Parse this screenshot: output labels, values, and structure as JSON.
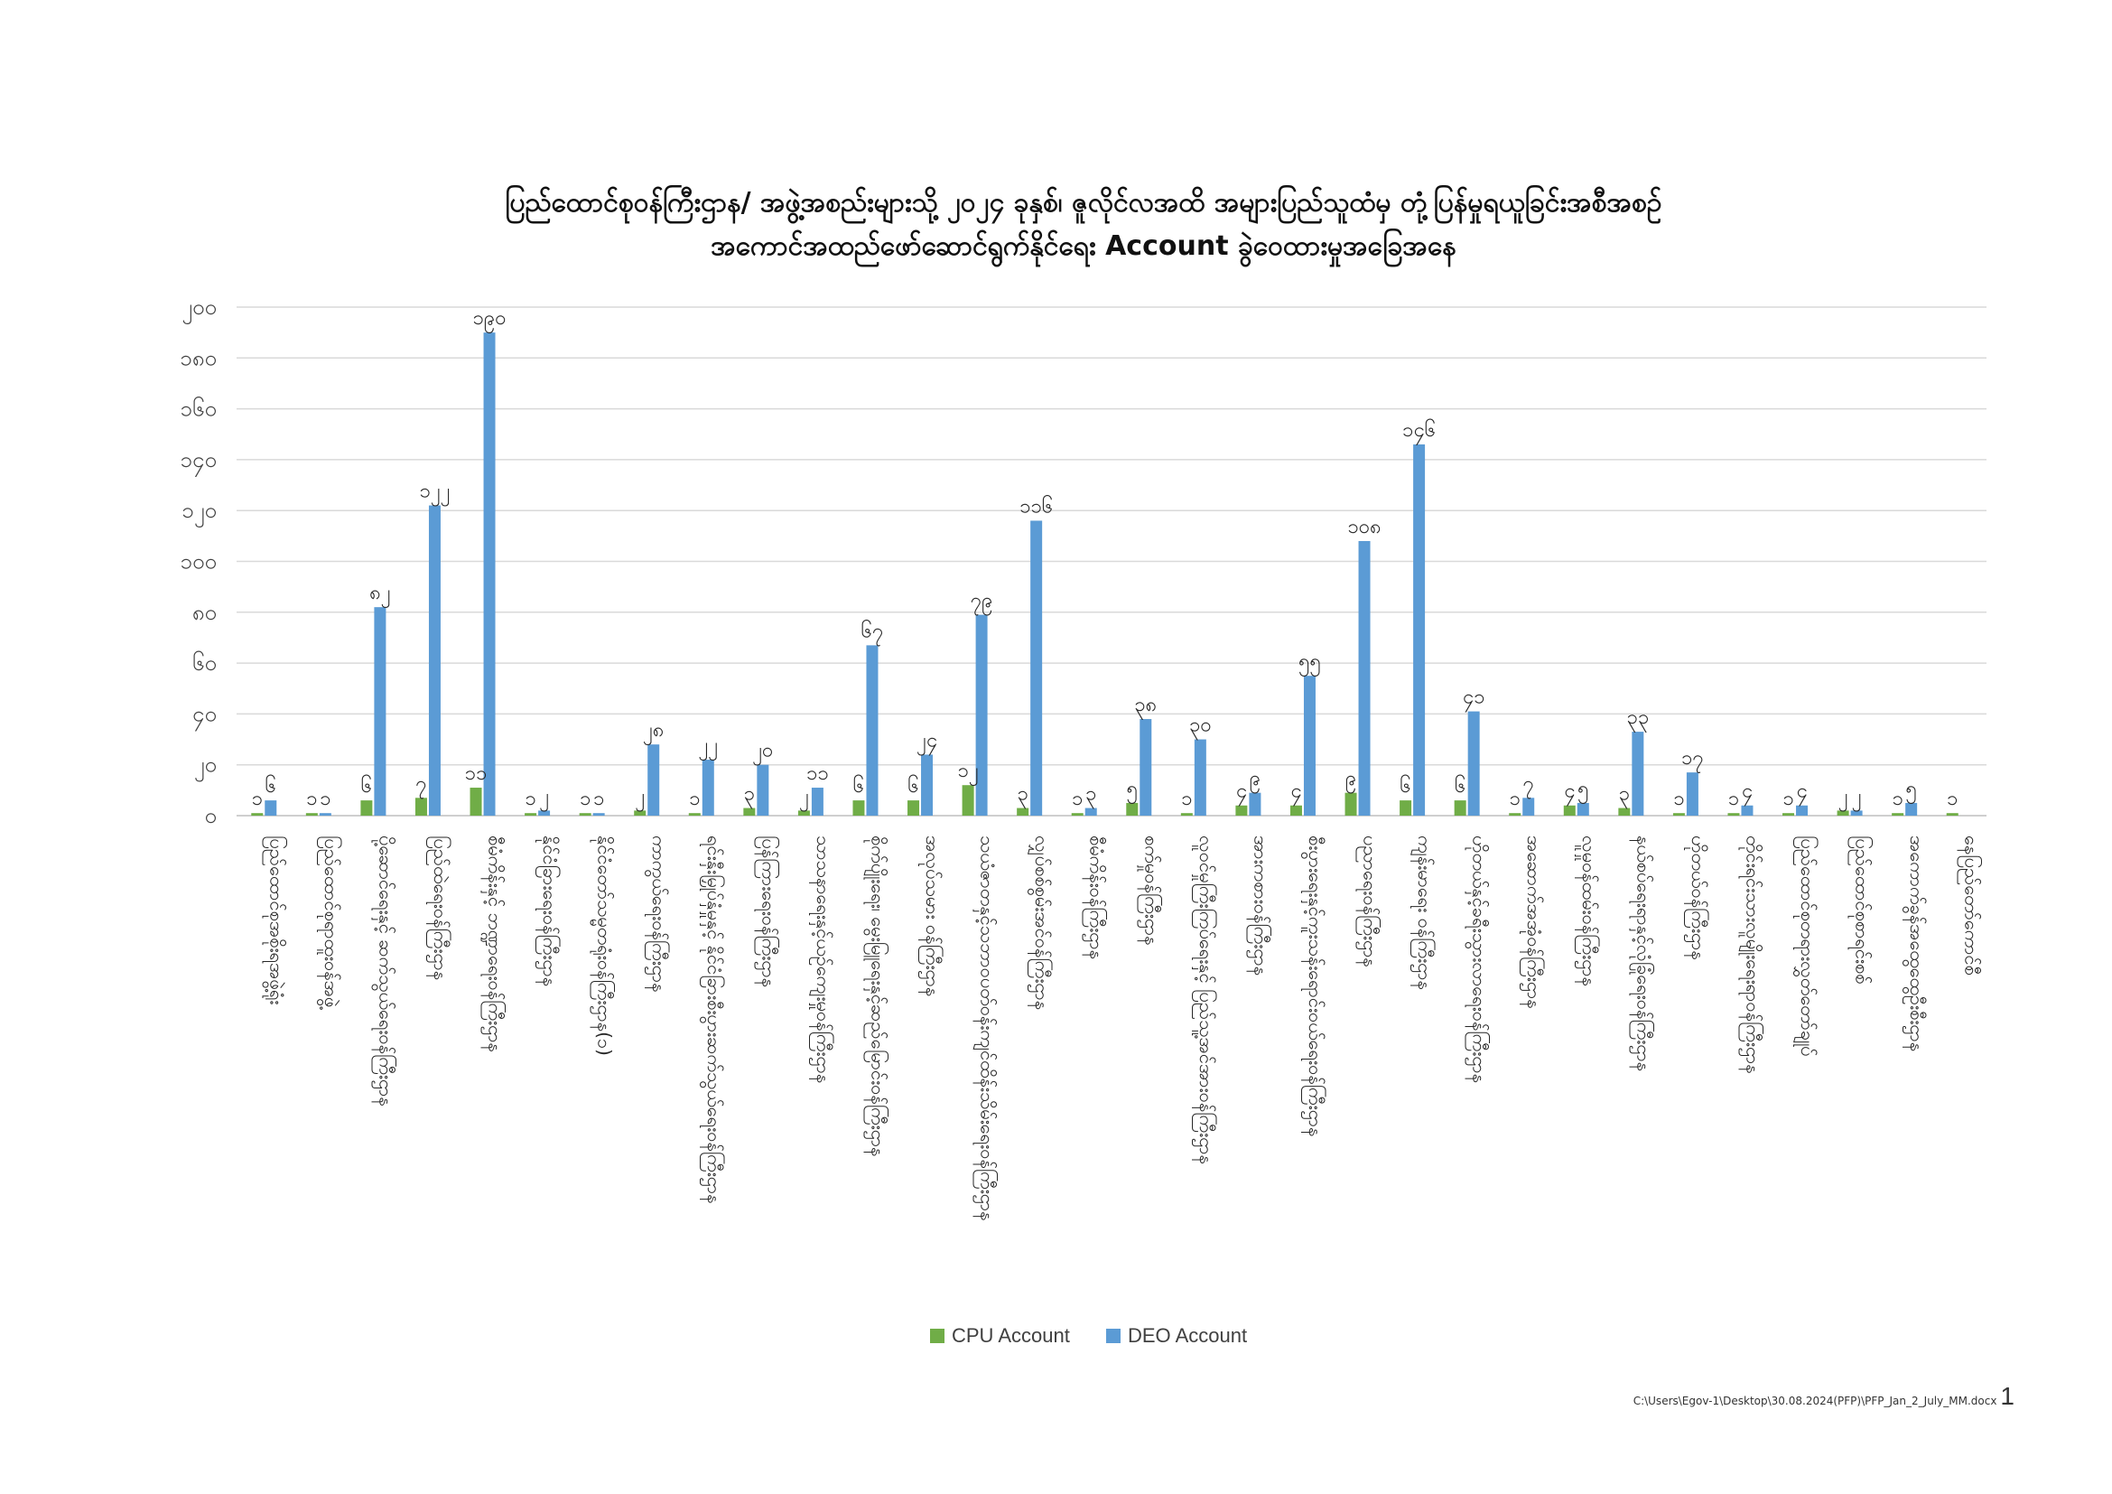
{
  "chart_data": {
    "type": "bar",
    "title": "ပြည်ထောင်စုဝန်ကြီးဌာန/ အဖွဲ့အစည်းများသို့ ၂၀၂၄ ခုနှစ်၊ ဇူလိုင်လအထိ အများပြည်သူထံမှ တုံ့ပြန်မှုရယူခြင်းအစီအစဉ်",
    "subtitle": "အကောင်အထည်ဖော်ဆောင်ရွက်နိုင်ရေး Account ခွဲဝေထားမှုအခြေအနေ",
    "ylim": [
      0,
      200
    ],
    "yticks": [
      "၀",
      "၂၀",
      "၄၀",
      "၆၀",
      "၈၀",
      "၁၀၀",
      "၁၂၀",
      "၁၄၀",
      "၁၆၀",
      "၁၈၀",
      "၂၀၀"
    ],
    "grid": true,
    "legend_position": "bottom",
    "categories": [
      "ပြည်ထောင်စုအစိုးရအဖွဲ့ရုံး",
      "ပြည်ထောင်စုရာထူးဝန်အဖွဲ့",
      "ပို့ဆောင်ရေးနှင့် ဆက်သွယ်ရေးဝန်ကြီးဌာန",
      "ပြည်ထဲရေးဝန်ကြီးဌာန",
      "စီမံကိန်းနှင့် ဘဏ္ဍာရေးဝန်ကြီးဌာန",
      "နိုင်ငံခြားရေးဝန်ကြီးဌာန",
      "နိုင်ငံတော်သမ္မတရုံးဝန်ကြီးဌာန(၁)",
      "ကာကွယ်ရေးဝန်ကြီးဌာန",
      "ရင်းနှီးမြှုပ်နှံမှုနှင့် နိုင်ငံခြားစီးပွားဆက်သွယ်ရေးဝန်ကြီးဌာန",
      "ပြန်ကြားရေးဝန်ကြီးဌာန",
      "သာသနာရေးနှင့်ယဉ်ကျေးမှုဝန်ကြီးဌာန",
      "စိုက်ပျိုးရေး၊ မွေးမြူရေးနှင့်ဆည်မြောင်းဝန်ကြီးဌာန",
      "အလုပ်သမား ဝန်ကြီးဌာန",
      "သယံဇာတနှင့်သဘာဝပတ်ဝန်းကျင်ထိန်းသိမ်းရေးဝန်ကြီးဌာန",
      "လျှပ်စစ်စွမ်းအင်ဝန်ကြီးဌာန",
      "စီမံကိန်းဝန်ကြီးဌာန",
      "စက်မှုဝန်ကြီးဌာန",
      "လူဝင်မှုကြီးကြပ်ရေးနှင့် ပြည်သူ့အင်အားဝန်ကြီးဌာန",
      "အားကစားဝန်ကြီးဌာန",
      "စီးပွားရေးနှင့်ကူးသန်းရောင်းဝယ်ရေးဝန်ကြီးဌာန",
      "ပညာရေးဝန်ကြီးဌာန",
      "ကျန်းမာရေး ဝန်ကြီးဌာန",
      "ဟိုတယ်နှင့်ခရီးသွားလာရေးဝန်ကြီးဌာန",
      "အဆောက်အအုံဝန်ကြီးဌာန",
      "လူမှုဝန်ထမ်းဝန်ကြီးဌာန",
      "နယ်စပ်ရေးရာနှင့်လုံခြုံရေးဝန်ကြီးဌာန",
      "ဟိုတယ်ဝန်ကြီးဌာန",
      "တိုင်းရင်းသားလူမျိုးရေးရာဝန်ကြီးဌာန",
      "ပြည်ထောင်စုတရားလွှတ်တော်ချုပ်",
      "ပြည်ထောင်စုစာရင်းစစ်",
      "အကောက်ခွန်အထွေထွေဦးစီးဌာန",
      "နေပြည်တော်ကောင်စီ"
    ],
    "x_tick_labels": [
      "ပြည်ထောင်စုအစိုးရအဖွဲ့ရုံး",
      "ပြည်ထောင်စုရာထူးဝန်အဖွဲ့",
      "ပို့ဆောင်ရေးနှင့် ဆက်သွယ်ရေးဝန်ကြီးဌာန",
      "ပြည်ထဲရေးဝန်ကြီးဌာန",
      "စီမံကိန်းနှင့် ဘဏ္ဍာရေးဝန်ကြီးဌာန",
      "နိုင်ငံခြားရေးဝန်ကြီးဌာန",
      "နိုင်ငံတော်သမ္မတရုံးဝန်ကြီးဌာန(၁)",
      "ကာကွယ်ရေးဝန်ကြီးဌာန",
      "ရင်းနှီးမြှုပ်နှံမှုနှင့် နိုင်ငံခြားစီးပွားဆက်သွယ်ရေးဝန်ကြီးဌာန",
      "ပြန်ကြားရေးဝန်ကြီးဌာန",
      "သာသနာရေးနှင့်ယဉ်ကျေးမှုဝန်ကြီးဌာန",
      "စိုက်ပျိုးရေး၊ မွေးမြူရေးနှင့်ဆည်မြောင်းဝန်ကြီးဌာန",
      "အလုပ်သမား ဝန်ကြီးဌာန",
      "သယံဇာတနှင့်သဘာဝပတ်ဝန်းကျင်ထိန်းသိမ်းရေးဝန်ကြီးဌာန",
      "လျှပ်စစ်စွမ်းအင်ဝန်ကြီးဌာန",
      "စီမံကိန်းဝန်ကြီးဌာန",
      "စက်မှုဝန်ကြီးဌာန",
      "လူဝင်မှုကြီးကြပ်ရေးနှင့် ပြည်သူ့အင်အားဝန်ကြီးဌာန",
      "အားကစားဝန်ကြီးဌာန",
      "စီးပွားရေးနှင့်ကူးသန်းရောင်းဝယ်ရေးဝန်ကြီးဌာန",
      "ပညာရေးဝန်ကြီးဌာန",
      "ကျန်းမာရေး ဝန်ကြီးဌာန",
      "ဟိုတယ်နှင့်ခရီးသွားလာရေးဝန်ကြီးဌာန",
      "အဆောက်အအုံဝန်ကြီးဌာန",
      "လူမှုဝန်ထမ်းဝန်ကြီးဌာန",
      "နယ်စပ်ရေးရာနှင့်လုံခြုံရေးဝန်ကြီးဌာန",
      "ဟိုတယ်ဝန်ကြီးဌာန",
      "တိုင်းရင်းသားလူမျိုးရေးရာဝန်ကြီးဌာန",
      "ပြည်ထောင်စုတရားလွှတ်တော်ချုပ်",
      "ပြည်ထောင်စုစာရင်းစစ်",
      "အကောက်ခွန်အထွေထွေဦးစီးဌာန",
      "နေပြည်တော်ကောင်စီ"
    ],
    "series": [
      {
        "name": "CPU Account",
        "color": "#70ad47",
        "values": [
          1,
          1,
          6,
          7,
          11,
          1,
          1,
          2,
          1,
          3,
          2,
          6,
          6,
          12,
          3,
          1,
          5,
          1,
          4,
          4,
          9,
          6,
          6,
          1,
          4,
          3,
          1,
          1,
          1,
          2,
          1,
          1
        ],
        "labels": [
          "၁",
          "၁",
          "၆",
          "၇",
          "၁၁",
          "၁",
          "၁",
          "၂",
          "၁",
          "၃",
          "၂",
          "၆",
          "၆",
          "၁၂",
          "၃",
          "၁",
          "၅",
          "၁",
          "၄",
          "၄",
          "၉",
          "၆",
          "၆",
          "၁",
          "၄",
          "၃",
          "၁",
          "၁",
          "၁",
          "၂",
          "၁",
          "၁"
        ]
      },
      {
        "name": "DEO Account",
        "color": "#5b9bd5",
        "values": [
          6,
          1,
          82,
          122,
          190,
          2,
          1,
          28,
          22,
          20,
          11,
          67,
          24,
          79,
          116,
          3,
          38,
          30,
          9,
          55,
          108,
          146,
          41,
          7,
          5,
          33,
          17,
          4,
          4,
          2,
          5,
          null
        ],
        "labels": [
          "၆",
          "၁",
          "၈၂",
          "၁၂၂",
          "၁၉၀",
          "၂",
          "၁",
          "၂၈",
          "၂၂",
          "၂၀",
          "၁၁",
          "၆၇",
          "၂၄",
          "၇၉",
          "၁၁၆",
          "၃",
          "၃၈",
          "၃၀",
          "၉",
          "၅၅",
          "၁၀၈",
          "၁၄၆",
          "၄၁",
          "၇",
          "၅",
          "၃၃",
          "၁၇",
          "၄",
          "၄",
          "၂",
          "၅",
          ""
        ]
      }
    ]
  },
  "footer": {
    "path": "C:\\Users\\Egov-1\\Desktop\\30.08.2024(PFP)\\PFP_Jan_2_July_MM.docx",
    "page": "1"
  }
}
